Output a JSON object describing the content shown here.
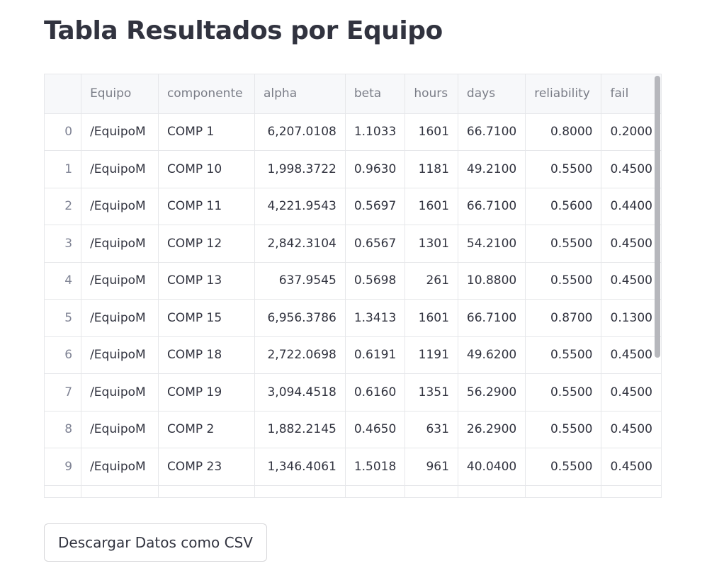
{
  "title": "Tabla Resultados por Equipo",
  "table": {
    "columns": [
      "",
      "Equipo",
      "componente",
      "alpha",
      "beta",
      "hours",
      "days",
      "reliability",
      "fail"
    ],
    "rows": [
      [
        "0",
        "/EquipoM",
        "COMP 1",
        "6,207.0108",
        "1.1033",
        "1601",
        "66.7100",
        "0.8000",
        "0.2000"
      ],
      [
        "1",
        "/EquipoM",
        "COMP 10",
        "1,998.3722",
        "0.9630",
        "1181",
        "49.2100",
        "0.5500",
        "0.4500"
      ],
      [
        "2",
        "/EquipoM",
        "COMP 11",
        "4,221.9543",
        "0.5697",
        "1601",
        "66.7100",
        "0.5600",
        "0.4400"
      ],
      [
        "3",
        "/EquipoM",
        "COMP 12",
        "2,842.3104",
        "0.6567",
        "1301",
        "54.2100",
        "0.5500",
        "0.4500"
      ],
      [
        "4",
        "/EquipoM",
        "COMP 13",
        "637.9545",
        "0.5698",
        "261",
        "10.8800",
        "0.5500",
        "0.4500"
      ],
      [
        "5",
        "/EquipoM",
        "COMP 15",
        "6,956.3786",
        "1.3413",
        "1601",
        "66.7100",
        "0.8700",
        "0.1300"
      ],
      [
        "6",
        "/EquipoM",
        "COMP 18",
        "2,722.0698",
        "0.6191",
        "1191",
        "49.6200",
        "0.5500",
        "0.4500"
      ],
      [
        "7",
        "/EquipoM",
        "COMP 19",
        "3,094.4518",
        "0.6160",
        "1351",
        "56.2900",
        "0.5500",
        "0.4500"
      ],
      [
        "8",
        "/EquipoM",
        "COMP 2",
        "1,882.2145",
        "0.4650",
        "631",
        "26.2900",
        "0.5500",
        "0.4500"
      ],
      [
        "9",
        "/EquipoM",
        "COMP 23",
        "1,346.4061",
        "1.5018",
        "961",
        "40.0400",
        "0.5500",
        "0.4500"
      ],
      [
        "",
        "",
        "",
        "",
        "",
        "",
        "",
        "",
        ""
      ]
    ]
  },
  "download_button": "Descargar Datos como CSV"
}
